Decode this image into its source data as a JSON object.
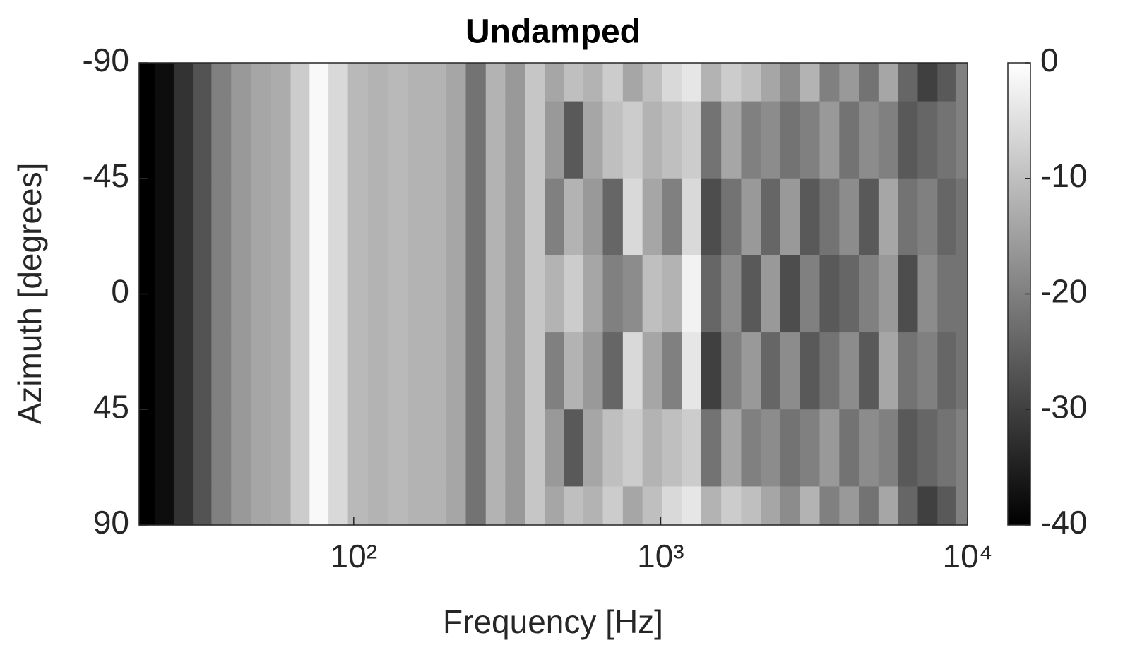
{
  "chart_data": {
    "type": "heatmap",
    "title": "Undamped",
    "xlabel": "Frequency [Hz]",
    "ylabel": "Azimuth [degrees]",
    "xscale": "log",
    "xlim": [
      20,
      10000
    ],
    "xticks": [
      {
        "value": 100,
        "label": "10²"
      },
      {
        "value": 1000,
        "label": "10³"
      },
      {
        "value": 10000,
        "label": "10⁴"
      }
    ],
    "ylim": [
      -90,
      90
    ],
    "y_reversed": true,
    "yticks": [
      -90,
      -45,
      0,
      45,
      90
    ],
    "colormap": "gray",
    "clim": [
      -40,
      0
    ],
    "cticks": [
      -40,
      -30,
      -20,
      -10,
      0
    ],
    "x": [
      21,
      24,
      28,
      32,
      37,
      43,
      50,
      58,
      67,
      77,
      89,
      103,
      120,
      140,
      160,
      185,
      215,
      250,
      290,
      335,
      390,
      450,
      520,
      600,
      700,
      810,
      940,
      1090,
      1260,
      1460,
      1700,
      1970,
      2280,
      2640,
      3060,
      3550,
      4110,
      4760,
      5520,
      6400,
      7400,
      8600,
      9700
    ],
    "y": [
      -90,
      -60,
      -30,
      0,
      30,
      60,
      90
    ],
    "z": [
      [
        -40,
        -38,
        -32,
        -27,
        -20,
        -16,
        -14,
        -13,
        -8,
        -1,
        -6,
        -11,
        -12,
        -11,
        -12,
        -12,
        -14,
        -22,
        -12,
        -16,
        -9,
        -14,
        -10,
        -12,
        -8,
        -14,
        -10,
        -6,
        -4,
        -12,
        -8,
        -10,
        -14,
        -18,
        -12,
        -20,
        -16,
        -22,
        -14,
        -24,
        -30,
        -26,
        -20
      ],
      [
        -40,
        -38,
        -32,
        -27,
        -20,
        -16,
        -14,
        -13,
        -8,
        -1,
        -6,
        -11,
        -12,
        -11,
        -12,
        -12,
        -14,
        -22,
        -12,
        -16,
        -9,
        -16,
        -26,
        -14,
        -10,
        -8,
        -12,
        -10,
        -8,
        -22,
        -14,
        -20,
        -18,
        -22,
        -20,
        -16,
        -22,
        -18,
        -20,
        -26,
        -24,
        -22,
        -20
      ],
      [
        -40,
        -38,
        -32,
        -27,
        -20,
        -16,
        -14,
        -13,
        -8,
        -1,
        -6,
        -11,
        -12,
        -11,
        -12,
        -12,
        -14,
        -22,
        -12,
        -16,
        -9,
        -20,
        -12,
        -16,
        -24,
        -6,
        -14,
        -20,
        -6,
        -28,
        -22,
        -16,
        -24,
        -16,
        -26,
        -22,
        -18,
        -26,
        -14,
        -22,
        -20,
        -24,
        -22
      ],
      [
        -40,
        -38,
        -32,
        -27,
        -20,
        -16,
        -14,
        -13,
        -8,
        -1,
        -6,
        -11,
        -12,
        -11,
        -12,
        -12,
        -14,
        -22,
        -12,
        -16,
        -9,
        -12,
        -8,
        -14,
        -20,
        -18,
        -10,
        -12,
        -2,
        -24,
        -18,
        -26,
        -16,
        -28,
        -20,
        -26,
        -24,
        -20,
        -16,
        -28,
        -18,
        -22,
        -22
      ],
      [
        -40,
        -38,
        -32,
        -27,
        -20,
        -16,
        -14,
        -13,
        -8,
        -1,
        -6,
        -11,
        -12,
        -11,
        -12,
        -12,
        -14,
        -22,
        -12,
        -16,
        -9,
        -20,
        -12,
        -16,
        -24,
        -6,
        -14,
        -20,
        -4,
        -30,
        -20,
        -16,
        -24,
        -18,
        -26,
        -22,
        -18,
        -26,
        -14,
        -22,
        -20,
        -24,
        -22
      ],
      [
        -40,
        -38,
        -32,
        -27,
        -20,
        -16,
        -14,
        -13,
        -8,
        -1,
        -6,
        -11,
        -12,
        -11,
        -12,
        -12,
        -14,
        -22,
        -12,
        -16,
        -9,
        -16,
        -26,
        -14,
        -10,
        -8,
        -12,
        -10,
        -8,
        -22,
        -14,
        -20,
        -18,
        -22,
        -20,
        -16,
        -22,
        -18,
        -20,
        -26,
        -24,
        -22,
        -20
      ],
      [
        -40,
        -38,
        -32,
        -27,
        -20,
        -16,
        -14,
        -13,
        -8,
        -1,
        -6,
        -11,
        -12,
        -11,
        -12,
        -12,
        -14,
        -22,
        -12,
        -16,
        -9,
        -14,
        -10,
        -12,
        -8,
        -14,
        -10,
        -6,
        -4,
        -12,
        -8,
        -10,
        -14,
        -18,
        -12,
        -20,
        -16,
        -22,
        -14,
        -24,
        -30,
        -26,
        -20
      ]
    ]
  }
}
